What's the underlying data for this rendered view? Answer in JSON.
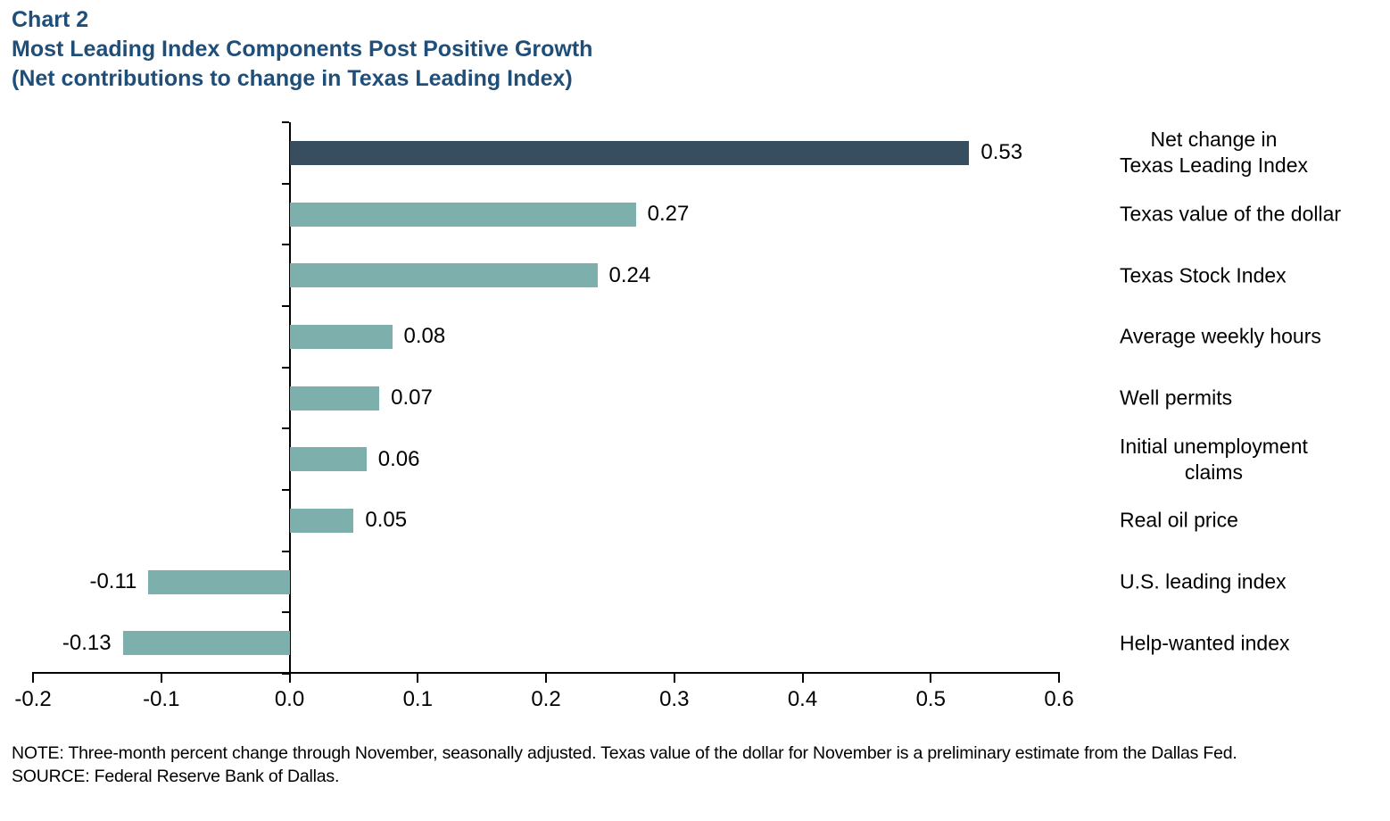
{
  "header": {
    "chart_label": "Chart 2",
    "title": "Most Leading Index Components Post Positive Growth",
    "subtitle": "(Net contributions to change in Texas Leading Index)"
  },
  "colors": {
    "title_text": "#1F4E79",
    "highlight_bar": "#374E61",
    "default_bar": "#7DAFAC",
    "axis": "#000000"
  },
  "chart_data": {
    "type": "bar",
    "orientation": "horizontal",
    "title": "Most Leading Index Components Post Positive Growth",
    "subtitle": "(Net contributions to change in Texas Leading Index)",
    "categories": [
      [
        "Net change in",
        "Texas Leading Index"
      ],
      [
        "Texas value of the dollar"
      ],
      [
        "Texas Stock Index"
      ],
      [
        "Average weekly hours"
      ],
      [
        "Well permits"
      ],
      [
        "Initial unemployment",
        "claims"
      ],
      [
        "Real oil price"
      ],
      [
        "U.S. leading index"
      ],
      [
        "Help-wanted index"
      ]
    ],
    "values": [
      0.53,
      0.27,
      0.24,
      0.08,
      0.07,
      0.06,
      0.05,
      -0.11,
      -0.13
    ],
    "value_labels": [
      "0.53",
      "0.27",
      "0.24",
      "0.08",
      "0.07",
      "0.06",
      "0.05",
      "-0.11",
      "-0.13"
    ],
    "highlight_index": 0,
    "xlim": [
      -0.2,
      0.6
    ],
    "x_tick_labels": [
      "-0.2",
      "-0.1",
      "0.0",
      "0.1",
      "0.2",
      "0.3",
      "0.4",
      "0.5",
      "0.6"
    ],
    "grid": false,
    "legend": null
  },
  "footer": {
    "note": "NOTE: Three-month percent change through November, seasonally adjusted. Texas value of the dollar for November is a preliminary estimate from the Dallas Fed.",
    "source": "SOURCE: Federal Reserve Bank of Dallas."
  }
}
